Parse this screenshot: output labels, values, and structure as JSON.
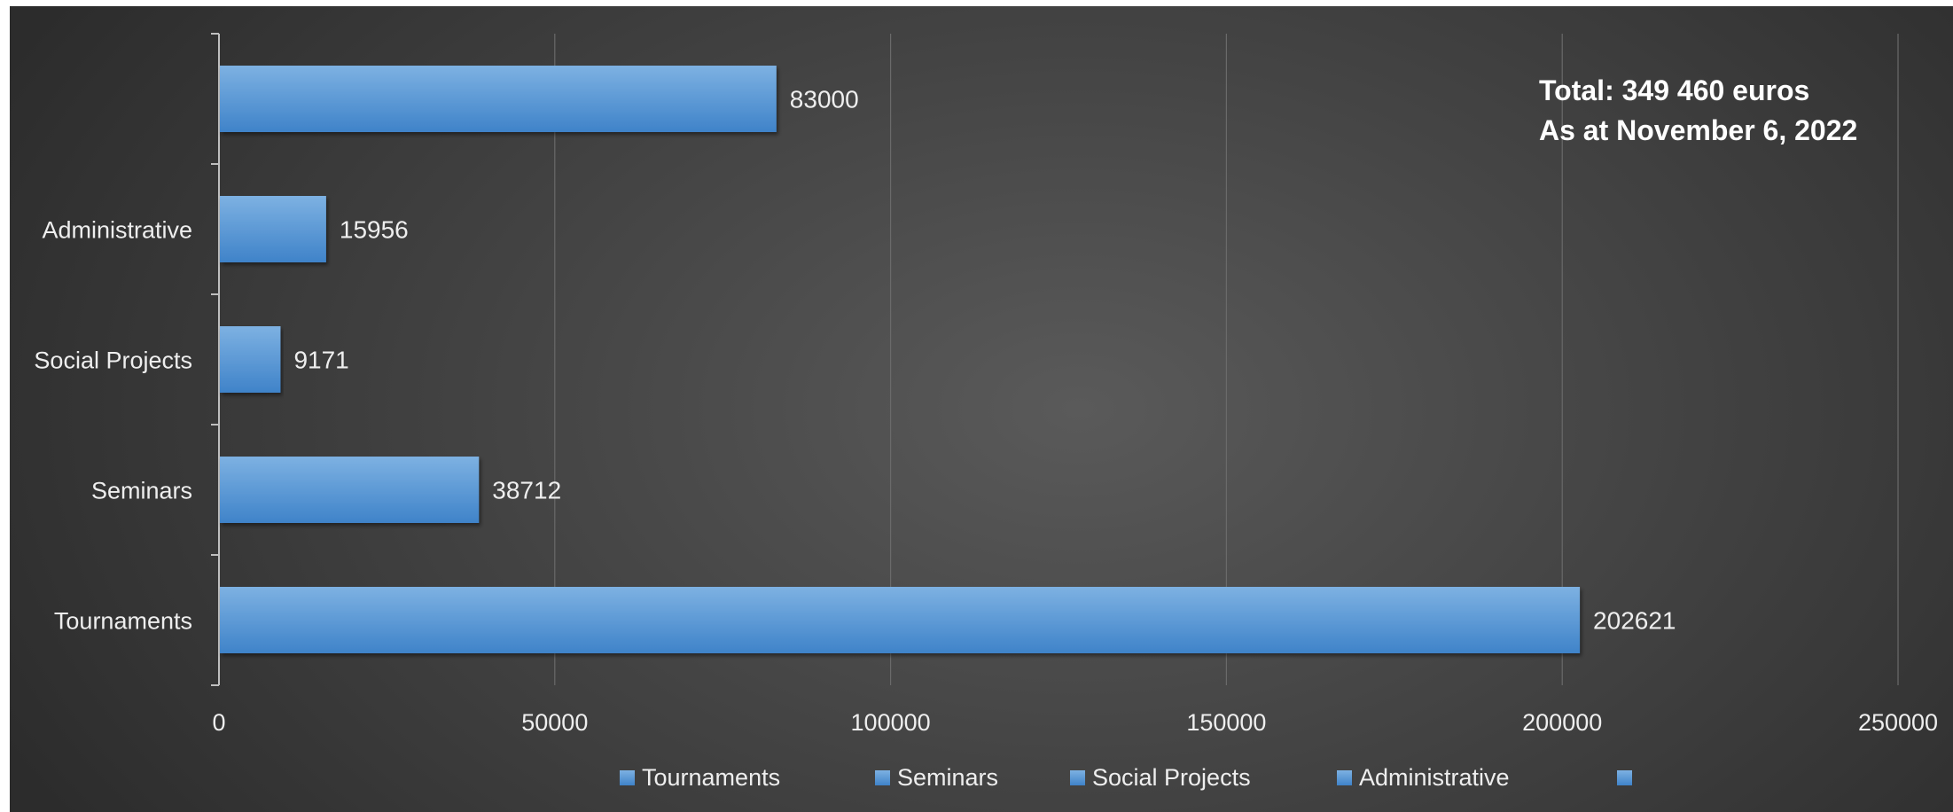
{
  "chart_data": {
    "type": "bar",
    "orientation": "horizontal",
    "categories": [
      "Tournaments",
      "Seminars",
      "Social Projects",
      "Administrative",
      ""
    ],
    "values": [
      202621,
      38712,
      9171,
      15956,
      83000
    ],
    "data_labels": [
      "202621",
      "38712",
      "9171",
      "15956",
      "83000"
    ],
    "xlim": [
      0,
      250000
    ],
    "x_ticks": [
      0,
      50000,
      100000,
      150000,
      200000,
      250000
    ],
    "x_tick_labels": [
      "0",
      "50000",
      "100000",
      "150000",
      "200000",
      "250000"
    ],
    "grid": true,
    "legend": {
      "position": "bottom",
      "entries": [
        "Tournaments",
        "Seminars",
        "Social Projects",
        "Administrative",
        ""
      ]
    },
    "annotation": {
      "line1": "Total: 349 460 euros",
      "line2": "As at November 6, 2022"
    },
    "colors": {
      "bar": "#5b9bd5",
      "bar_light": "#7db1e2",
      "bar_dark": "#3f83c9",
      "background": "#404040",
      "gridline": "#6a6a6a",
      "axis": "#bfbfbf",
      "text": "#eeeeee"
    }
  }
}
